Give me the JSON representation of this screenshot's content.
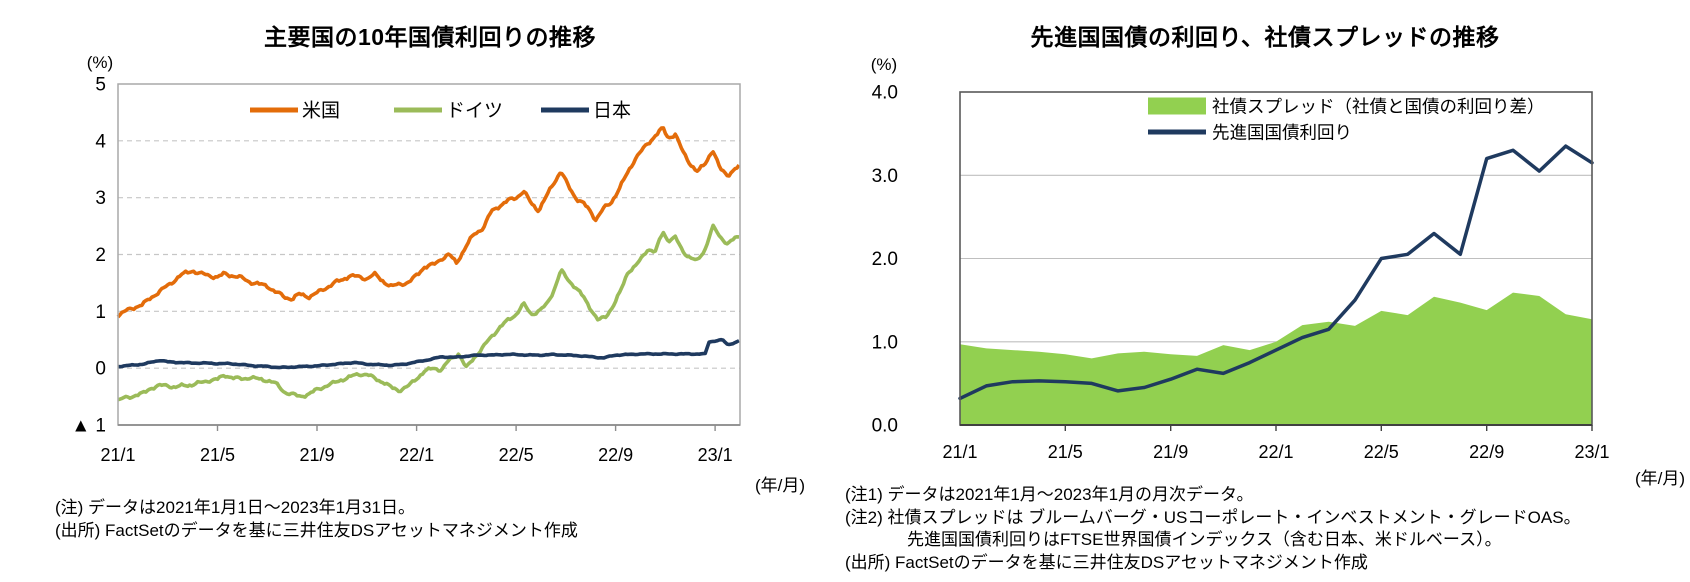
{
  "chart_data": [
    {
      "id": "left",
      "type": "line",
      "title": "主要国の10年国債利回りの推移",
      "y_unit": "(%)",
      "x_unit": "(年/月)",
      "ylim": [
        -1,
        5
      ],
      "y_tick_labels": [
        "5",
        "4",
        "3",
        "2",
        "1",
        "0",
        "▲ 1"
      ],
      "y_tick_values": [
        5,
        4,
        3,
        2,
        1,
        0,
        -1
      ],
      "grid_values": [
        4,
        3,
        2,
        1,
        0
      ],
      "x_tick_labels": [
        "21/1",
        "21/5",
        "21/9",
        "22/1",
        "22/5",
        "22/9",
        "23/1"
      ],
      "x_tick_months": [
        0,
        4,
        8,
        12,
        16,
        20,
        24
      ],
      "legend_position": "top-inside",
      "series": [
        {
          "key": "germany",
          "name": "ドイツ",
          "color": "#9bbb59",
          "wiggle": 0.038,
          "points": [
            [
              0,
              -0.57
            ],
            [
              0.3,
              -0.52
            ],
            [
              0.7,
              -0.48
            ],
            [
              1,
              -0.45
            ],
            [
              1.3,
              -0.35
            ],
            [
              1.7,
              -0.31
            ],
            [
              2,
              -0.3
            ],
            [
              2.3,
              -0.34
            ],
            [
              2.7,
              -0.3
            ],
            [
              3,
              -0.29
            ],
            [
              3.3,
              -0.26
            ],
            [
              3.7,
              -0.21
            ],
            [
              4,
              -0.2
            ],
            [
              4.3,
              -0.12
            ],
            [
              4.7,
              -0.18
            ],
            [
              5,
              -0.19
            ],
            [
              5.3,
              -0.16
            ],
            [
              5.7,
              -0.2
            ],
            [
              6,
              -0.21
            ],
            [
              6.3,
              -0.26
            ],
            [
              6.7,
              -0.42
            ],
            [
              7,
              -0.46
            ],
            [
              7.3,
              -0.5
            ],
            [
              7.7,
              -0.45
            ],
            [
              8,
              -0.38
            ],
            [
              8.3,
              -0.32
            ],
            [
              8.7,
              -0.26
            ],
            [
              9,
              -0.2
            ],
            [
              9.3,
              -0.16
            ],
            [
              9.7,
              -0.1
            ],
            [
              10,
              -0.11
            ],
            [
              10.3,
              -0.18
            ],
            [
              10.7,
              -0.25
            ],
            [
              11,
              -0.35
            ],
            [
              11.3,
              -0.39
            ],
            [
              11.7,
              -0.31
            ],
            [
              12,
              -0.18
            ],
            [
              12.3,
              -0.06
            ],
            [
              12.7,
              0.0
            ],
            [
              13,
              -0.03
            ],
            [
              13.3,
              0.13
            ],
            [
              13.7,
              0.26
            ],
            [
              14,
              0.0
            ],
            [
              14.3,
              0.18
            ],
            [
              14.7,
              0.38
            ],
            [
              15,
              0.55
            ],
            [
              15.3,
              0.7
            ],
            [
              15.7,
              0.85
            ],
            [
              16,
              0.95
            ],
            [
              16.3,
              1.13
            ],
            [
              16.6,
              0.95
            ],
            [
              16.9,
              1.0
            ],
            [
              17.2,
              1.1
            ],
            [
              17.5,
              1.35
            ],
            [
              17.8,
              1.72
            ],
            [
              18.1,
              1.55
            ],
            [
              18.4,
              1.42
            ],
            [
              18.7,
              1.25
            ],
            [
              19,
              1.05
            ],
            [
              19.3,
              0.84
            ],
            [
              19.6,
              0.9
            ],
            [
              19.9,
              1.1
            ],
            [
              20.2,
              1.35
            ],
            [
              20.5,
              1.7
            ],
            [
              20.8,
              1.8
            ],
            [
              21,
              1.9
            ],
            [
              21.3,
              2.1
            ],
            [
              21.6,
              2.05
            ],
            [
              21.9,
              2.4
            ],
            [
              22.1,
              2.25
            ],
            [
              22.4,
              2.3
            ],
            [
              22.7,
              2.05
            ],
            [
              23,
              1.95
            ],
            [
              23.3,
              1.88
            ],
            [
              23.6,
              2.1
            ],
            [
              23.9,
              2.5
            ],
            [
              24.2,
              2.3
            ],
            [
              24.5,
              2.2
            ],
            [
              24.8,
              2.28
            ],
            [
              25,
              2.3
            ]
          ]
        },
        {
          "key": "us",
          "name": "米国",
          "color": "#e36c0a",
          "wiggle": 0.042,
          "points": [
            [
              0,
              0.93
            ],
            [
              0.3,
              1.0
            ],
            [
              0.7,
              1.08
            ],
            [
              1,
              1.12
            ],
            [
              1.5,
              1.3
            ],
            [
              2,
              1.45
            ],
            [
              2.5,
              1.63
            ],
            [
              3,
              1.72
            ],
            [
              3.3,
              1.66
            ],
            [
              3.7,
              1.63
            ],
            [
              4,
              1.6
            ],
            [
              4.3,
              1.66
            ],
            [
              4.7,
              1.62
            ],
            [
              5,
              1.58
            ],
            [
              5.3,
              1.52
            ],
            [
              5.7,
              1.47
            ],
            [
              6,
              1.45
            ],
            [
              6.3,
              1.35
            ],
            [
              6.7,
              1.25
            ],
            [
              7,
              1.22
            ],
            [
              7.3,
              1.3
            ],
            [
              7.7,
              1.26
            ],
            [
              8,
              1.32
            ],
            [
              8.3,
              1.4
            ],
            [
              8.7,
              1.5
            ],
            [
              9,
              1.55
            ],
            [
              9.3,
              1.63
            ],
            [
              9.7,
              1.6
            ],
            [
              10,
              1.58
            ],
            [
              10.3,
              1.65
            ],
            [
              10.7,
              1.52
            ],
            [
              11,
              1.43
            ],
            [
              11.3,
              1.48
            ],
            [
              11.7,
              1.51
            ],
            [
              12,
              1.63
            ],
            [
              12.3,
              1.78
            ],
            [
              12.7,
              1.82
            ],
            [
              13,
              1.93
            ],
            [
              13.3,
              2.0
            ],
            [
              13.6,
              1.85
            ],
            [
              14,
              2.15
            ],
            [
              14.3,
              2.35
            ],
            [
              14.7,
              2.48
            ],
            [
              15,
              2.75
            ],
            [
              15.3,
              2.85
            ],
            [
              15.7,
              2.95
            ],
            [
              16,
              3.0
            ],
            [
              16.3,
              3.12
            ],
            [
              16.6,
              2.9
            ],
            [
              16.9,
              2.78
            ],
            [
              17.2,
              3.0
            ],
            [
              17.5,
              3.25
            ],
            [
              17.8,
              3.47
            ],
            [
              18.1,
              3.2
            ],
            [
              18.4,
              3.0
            ],
            [
              18.7,
              2.9
            ],
            [
              19,
              2.75
            ],
            [
              19.2,
              2.62
            ],
            [
              19.5,
              2.8
            ],
            [
              19.8,
              2.9
            ],
            [
              20.2,
              3.2
            ],
            [
              20.5,
              3.45
            ],
            [
              20.8,
              3.7
            ],
            [
              21,
              3.8
            ],
            [
              21.3,
              3.95
            ],
            [
              21.6,
              4.1
            ],
            [
              21.9,
              4.22
            ],
            [
              22.1,
              4.05
            ],
            [
              22.4,
              4.12
            ],
            [
              22.7,
              3.8
            ],
            [
              23,
              3.6
            ],
            [
              23.3,
              3.45
            ],
            [
              23.6,
              3.6
            ],
            [
              23.9,
              3.85
            ],
            [
              24.2,
              3.5
            ],
            [
              24.5,
              3.4
            ],
            [
              24.8,
              3.5
            ],
            [
              25,
              3.55
            ]
          ]
        },
        {
          "key": "japan",
          "name": "日本",
          "color": "#1f3a5f",
          "wiggle": 0.01,
          "points": [
            [
              0,
              0.03
            ],
            [
              0.5,
              0.05
            ],
            [
              1,
              0.07
            ],
            [
              1.7,
              0.14
            ],
            [
              2,
              0.11
            ],
            [
              2.5,
              0.1
            ],
            [
              3,
              0.09
            ],
            [
              3.5,
              0.09
            ],
            [
              4,
              0.08
            ],
            [
              4.5,
              0.08
            ],
            [
              5,
              0.06
            ],
            [
              5.5,
              0.04
            ],
            [
              6,
              0.03
            ],
            [
              6.5,
              0.01
            ],
            [
              7,
              0.02
            ],
            [
              7.5,
              0.03
            ],
            [
              8,
              0.04
            ],
            [
              8.5,
              0.06
            ],
            [
              9,
              0.08
            ],
            [
              9.5,
              0.1
            ],
            [
              10,
              0.07
            ],
            [
              10.5,
              0.06
            ],
            [
              11,
              0.05
            ],
            [
              11.5,
              0.07
            ],
            [
              12,
              0.11
            ],
            [
              12.5,
              0.15
            ],
            [
              13,
              0.2
            ],
            [
              13.5,
              0.19
            ],
            [
              14,
              0.21
            ],
            [
              14.5,
              0.23
            ],
            [
              15,
              0.23
            ],
            [
              15.5,
              0.24
            ],
            [
              16,
              0.24
            ],
            [
              16.5,
              0.23
            ],
            [
              17,
              0.23
            ],
            [
              17.5,
              0.24
            ],
            [
              18,
              0.23
            ],
            [
              18.5,
              0.22
            ],
            [
              19,
              0.2
            ],
            [
              19.5,
              0.18
            ],
            [
              20,
              0.23
            ],
            [
              20.5,
              0.24
            ],
            [
              21,
              0.25
            ],
            [
              21.5,
              0.25
            ],
            [
              22,
              0.25
            ],
            [
              22.5,
              0.25
            ],
            [
              23,
              0.25
            ],
            [
              23.6,
              0.25
            ],
            [
              23.75,
              0.46
            ],
            [
              24,
              0.48
            ],
            [
              24.3,
              0.5
            ],
            [
              24.5,
              0.41
            ],
            [
              24.8,
              0.45
            ],
            [
              25,
              0.49
            ]
          ]
        }
      ],
      "legend_order": [
        "米国",
        "ドイツ",
        "日本"
      ],
      "notes": [
        "(注) データは2021年1月1日～2023年1月31日。",
        "(出所) FactSetのデータを基に三井住友DSアセットマネジメント作成"
      ]
    },
    {
      "id": "right",
      "type": "area+line",
      "title": "先進国国債の利回り、社債スプレッドの推移",
      "y_unit": "(%)",
      "x_unit": "(年/月)",
      "ylim": [
        0,
        4
      ],
      "y_tick_labels": [
        "4.0",
        "3.0",
        "2.0",
        "1.0",
        "0.0"
      ],
      "y_tick_values": [
        4,
        3,
        2,
        1,
        0
      ],
      "grid_values": [
        3,
        2,
        1
      ],
      "x_tick_labels": [
        "21/1",
        "21/5",
        "21/9",
        "22/1",
        "22/5",
        "22/9",
        "23/1"
      ],
      "x_tick_months": [
        0,
        4,
        8,
        12,
        16,
        20,
        24
      ],
      "legend_position": "top-inside",
      "categories": [
        "21/1",
        "21/2",
        "21/3",
        "21/4",
        "21/5",
        "21/6",
        "21/7",
        "21/8",
        "21/9",
        "21/10",
        "21/11",
        "21/12",
        "22/1",
        "22/2",
        "22/3",
        "22/4",
        "22/5",
        "22/6",
        "22/7",
        "22/8",
        "22/9",
        "22/10",
        "22/11",
        "22/12",
        "23/1"
      ],
      "series": [
        {
          "key": "corporate-spread",
          "name": "社債スプレッド（社債と国債の利回り差）",
          "type": "area",
          "color": "#92d050",
          "values": [
            0.97,
            0.92,
            0.9,
            0.88,
            0.85,
            0.8,
            0.86,
            0.88,
            0.85,
            0.83,
            0.96,
            0.9,
            1.0,
            1.2,
            1.24,
            1.19,
            1.37,
            1.32,
            1.54,
            1.47,
            1.38,
            1.59,
            1.55,
            1.33,
            1.27
          ]
        },
        {
          "key": "dm-gov-yield",
          "name": "先進国国債利回り",
          "type": "line",
          "color": "#1f3a5f",
          "values": [
            0.32,
            0.47,
            0.52,
            0.53,
            0.52,
            0.5,
            0.41,
            0.45,
            0.55,
            0.67,
            0.62,
            0.75,
            0.9,
            1.05,
            1.15,
            1.5,
            2.0,
            2.05,
            2.3,
            2.05,
            3.2,
            3.3,
            3.05,
            3.35,
            3.15
          ]
        }
      ],
      "notes": [
        "(注1) データは2021年1月～2023年1月の月次データ。",
        "(注2) 社債スプレッドは ブルームバーグ・USコーポレート・インベストメント・グレードOAS。",
        "先進国国債利回りはFTSE世界国債インデックス（含む日本、米ドルベース）。",
        "(出所) FactSetのデータを基に三井住友DSアセットマネジメント作成"
      ]
    }
  ]
}
